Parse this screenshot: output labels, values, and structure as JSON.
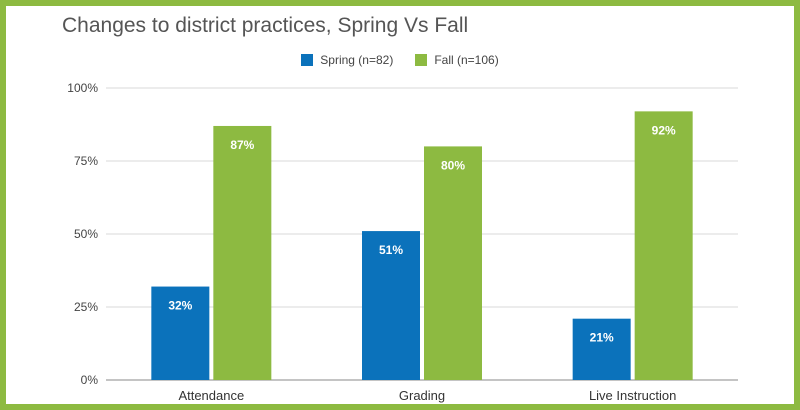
{
  "chart_data": {
    "type": "bar",
    "title": "Changes to district practices, Spring Vs Fall",
    "categories": [
      "Attendance",
      "Grading",
      "Live Instruction"
    ],
    "series": [
      {
        "name": "Spring (n=82)",
        "values": [
          32,
          51,
          21
        ],
        "labels": [
          "32%",
          "51%",
          "21%"
        ],
        "color": "#0b72bb"
      },
      {
        "name": "Fall (n=106)",
        "values": [
          87,
          80,
          92
        ],
        "labels": [
          "87%",
          "80%",
          "92%"
        ],
        "color": "#8dba41"
      }
    ],
    "yticks": [
      0,
      25,
      50,
      75,
      100
    ],
    "ytick_labels": [
      "0%",
      "25%",
      "50%",
      "75%",
      "100%"
    ],
    "ylim": [
      0,
      100
    ],
    "grid": true,
    "legend_position": "top-center"
  }
}
